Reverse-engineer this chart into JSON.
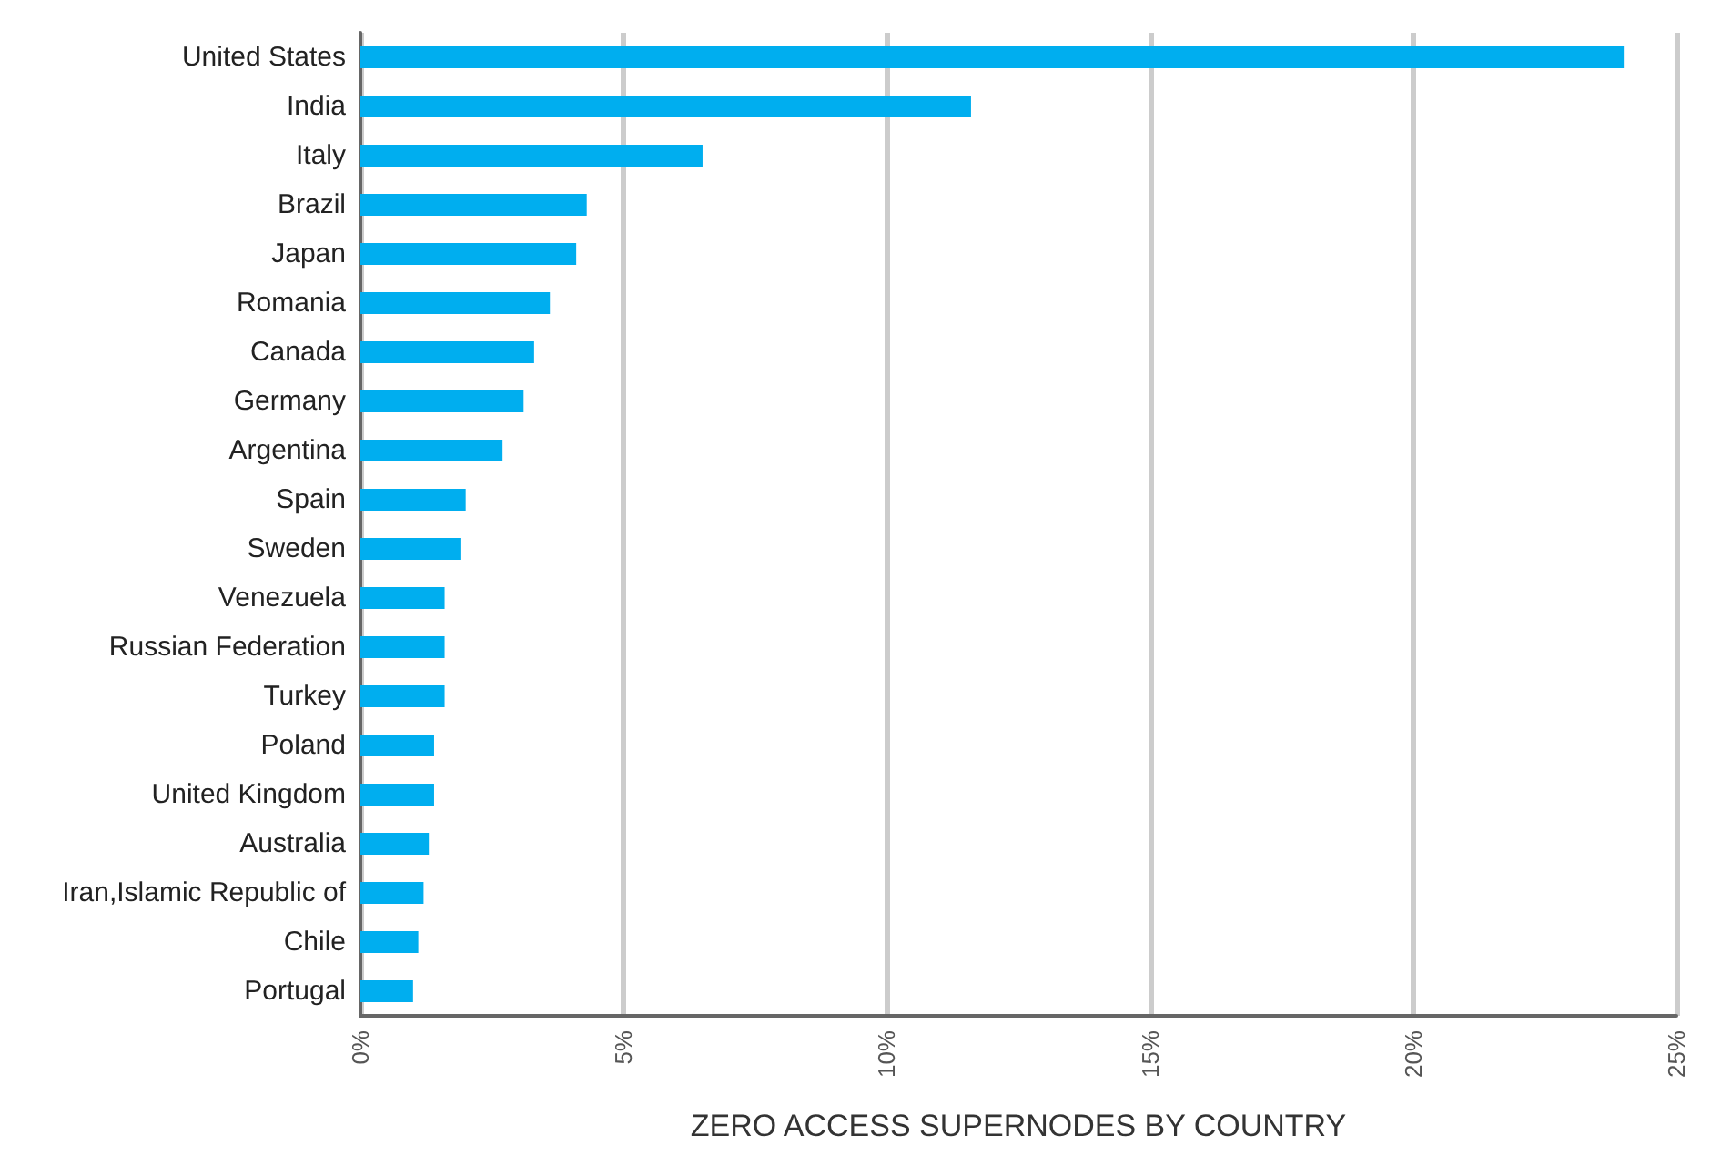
{
  "chart_data": {
    "type": "bar",
    "orientation": "horizontal",
    "xlabel": "ZERO ACCESS SUPERNODES BY COUNTRY",
    "categories": [
      "United States",
      "India",
      "Italy",
      "Brazil",
      "Japan",
      "Romania",
      "Canada",
      "Germany",
      "Argentina",
      "Spain",
      "Sweden",
      "Venezuela",
      "Russian Federation",
      "Turkey",
      "Poland",
      "United Kingdom",
      "Australia",
      "Iran,Islamic Republic of",
      "Chile",
      "Portugal"
    ],
    "values": [
      24.0,
      11.6,
      6.5,
      4.3,
      4.1,
      3.6,
      3.3,
      3.1,
      2.7,
      2.0,
      1.9,
      1.6,
      1.6,
      1.6,
      1.4,
      1.4,
      1.3,
      1.2,
      1.1,
      1.0
    ],
    "color": "#00aeef",
    "xlim": [
      0,
      25
    ],
    "xticks": [
      {
        "value": 0,
        "label": "0%"
      },
      {
        "value": 5,
        "label": "5%"
      },
      {
        "value": 10,
        "label": "10%"
      },
      {
        "value": 15,
        "label": "15%"
      },
      {
        "value": 20,
        "label": "20%"
      },
      {
        "value": 25,
        "label": "25%"
      }
    ],
    "grid": "x"
  }
}
